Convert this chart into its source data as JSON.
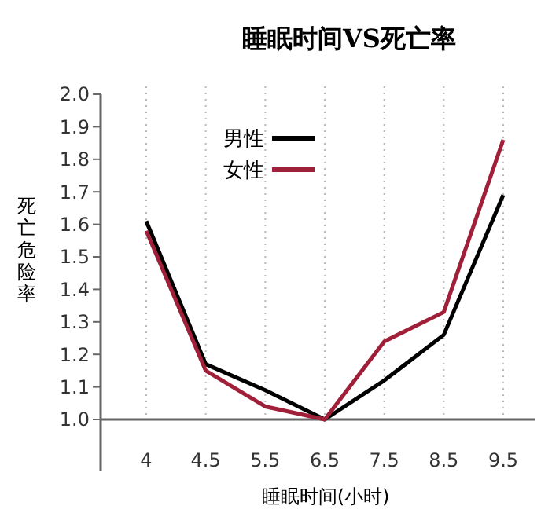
{
  "chart_data": {
    "type": "line",
    "title": "睡眠时间VS死亡率",
    "xlabel": "睡眠时间(小时)",
    "ylabel": "死亡危险率",
    "categories": [
      "4",
      "4.5",
      "5.5",
      "6.5",
      "7.5",
      "8.5",
      "9.5"
    ],
    "series": [
      {
        "name": "男性",
        "color": "#000000",
        "values": [
          1.61,
          1.17,
          1.09,
          1.0,
          1.12,
          1.26,
          1.69
        ]
      },
      {
        "name": "女性",
        "color": "#a0203a",
        "values": [
          1.58,
          1.15,
          1.04,
          1.0,
          1.24,
          1.33,
          1.86
        ]
      }
    ],
    "ylim": [
      1.0,
      2.0
    ],
    "yticks": [
      {
        "value": 1.0,
        "label": "1.0"
      },
      1.1,
      1.2,
      1.3,
      1.4,
      1.5,
      1.6,
      1.7,
      1.8,
      1.9,
      {
        "value": 2.0,
        "label": "2.0"
      }
    ],
    "grid": "x",
    "legend": "top",
    "marker": "none",
    "line_style": "solid"
  }
}
